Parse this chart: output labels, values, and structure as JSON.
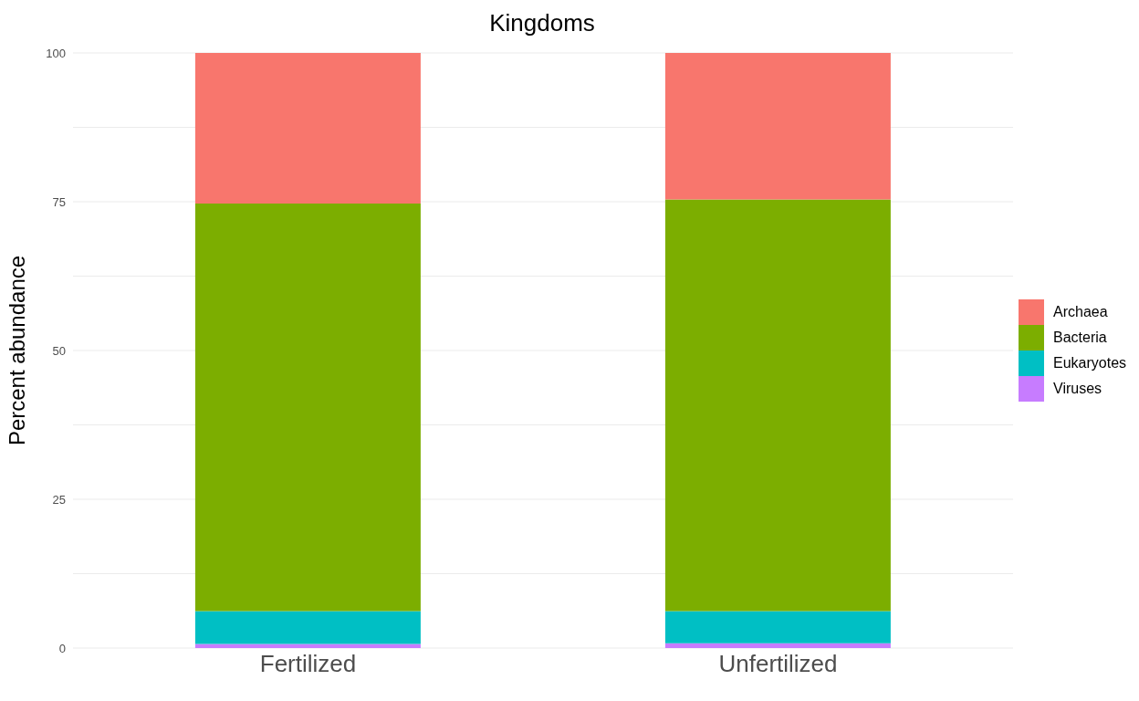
{
  "chart_data": {
    "type": "bar",
    "title": "Kingdoms",
    "ylabel": "Percent abundance",
    "categories": [
      "Fertilized",
      "Unfertilized"
    ],
    "stacked": true,
    "series": [
      {
        "name": "Viruses",
        "color": "#c77cff",
        "values": [
          0.7,
          0.8
        ]
      },
      {
        "name": "Eukaryotes",
        "color": "#00bfc4",
        "values": [
          5.5,
          5.4
        ]
      },
      {
        "name": "Bacteria",
        "color": "#7cae00",
        "values": [
          68.5,
          69.2
        ]
      },
      {
        "name": "Archaea",
        "color": "#f8766d",
        "values": [
          25.3,
          24.6
        ]
      }
    ],
    "ylim": [
      0,
      100
    ],
    "yticks": [
      0,
      {
        "value": 12.5,
        "label": null
      },
      25,
      {
        "value": 37.5,
        "label": null
      },
      50,
      {
        "value": 62.5,
        "label": null
      },
      75,
      {
        "value": 87.5,
        "label": null
      },
      100
    ],
    "grid": "y",
    "legend": "right"
  }
}
